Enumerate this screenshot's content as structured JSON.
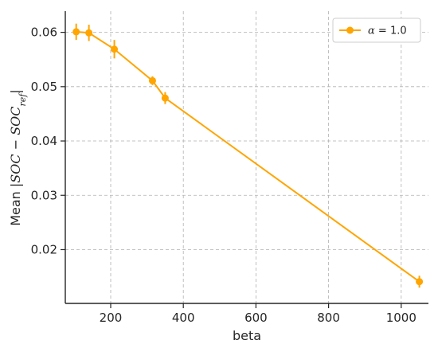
{
  "chart_data": {
    "type": "line",
    "title": "",
    "xlabel": "beta",
    "ylabel": {
      "prefix": "Mean |",
      "term1": "SOC",
      "minus": " − ",
      "term2": "SOC",
      "subscript": "ref",
      "suffix": "|"
    },
    "xlim": [
      75,
      1075
    ],
    "ylim": [
      0.0101,
      0.0639
    ],
    "x_ticks": [
      200,
      400,
      600,
      800,
      1000
    ],
    "x_tick_labels": [
      "200",
      "400",
      "600",
      "800",
      "1000"
    ],
    "y_ticks": [
      0.02,
      0.03,
      0.04,
      0.05,
      0.06
    ],
    "y_tick_labels": [
      "0.02",
      "0.03",
      "0.04",
      "0.05",
      "0.06"
    ],
    "grid": true,
    "legend_position": "top-right",
    "series": [
      {
        "name": "α = 1.0",
        "legend_symbol": "α",
        "legend_rest": " = 1.0",
        "color": "#FFA500",
        "x": [
          105,
          140,
          210,
          315,
          350,
          1050
        ],
        "y": [
          0.0601,
          0.0599,
          0.0569,
          0.0511,
          0.0479,
          0.0141
        ],
        "yerr": [
          0.0015,
          0.0015,
          0.0017,
          0.0008,
          0.0011,
          0.0011
        ]
      }
    ]
  }
}
